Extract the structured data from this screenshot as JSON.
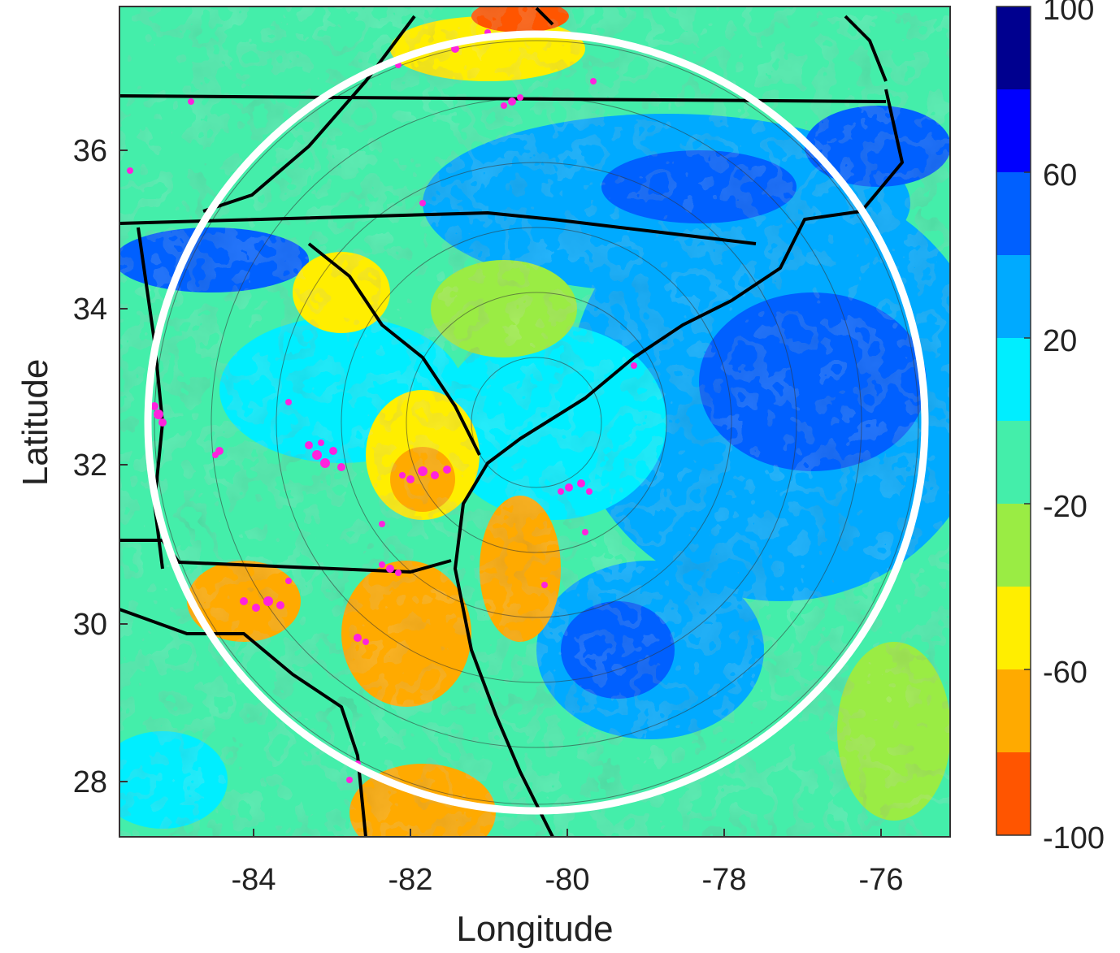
{
  "map": {
    "xlabel": "Longitude",
    "ylabel": "Latitude",
    "x_ticks": [
      "-84",
      "-82",
      "-80",
      "-78",
      "-76"
    ],
    "y_ticks": [
      "36",
      "34",
      "32",
      "30",
      "28"
    ],
    "extent": {
      "lon_min": -85.8,
      "lon_max": -75.2,
      "lat_min": 27.3,
      "lat_max": 37.8
    },
    "ring_center": {
      "lon": -80.4,
      "lat": 32.5
    },
    "colorbar": {
      "labels": [
        "100",
        "60",
        "20",
        "-20",
        "-60",
        "-100"
      ],
      "bands": [
        {
          "from": 80,
          "to": 100,
          "color": "#00008f"
        },
        {
          "from": 60,
          "to": 80,
          "color": "#0000ff"
        },
        {
          "from": 40,
          "to": 60,
          "color": "#0060ff"
        },
        {
          "from": 20,
          "to": 40,
          "color": "#00aaff"
        },
        {
          "from": 0,
          "to": 20,
          "color": "#00eeff"
        },
        {
          "from": -20,
          "to": 0,
          "color": "#44eeaa"
        },
        {
          "from": -40,
          "to": -20,
          "color": "#9aec44"
        },
        {
          "from": -60,
          "to": -40,
          "color": "#ffee00"
        },
        {
          "from": -80,
          "to": -60,
          "color": "#ffaa00"
        },
        {
          "from": -100,
          "to": -80,
          "color": "#ff5500"
        }
      ]
    },
    "colors": {
      "border": "#000000",
      "ring": "#ffffff",
      "points": "#ff22dd"
    }
  }
}
